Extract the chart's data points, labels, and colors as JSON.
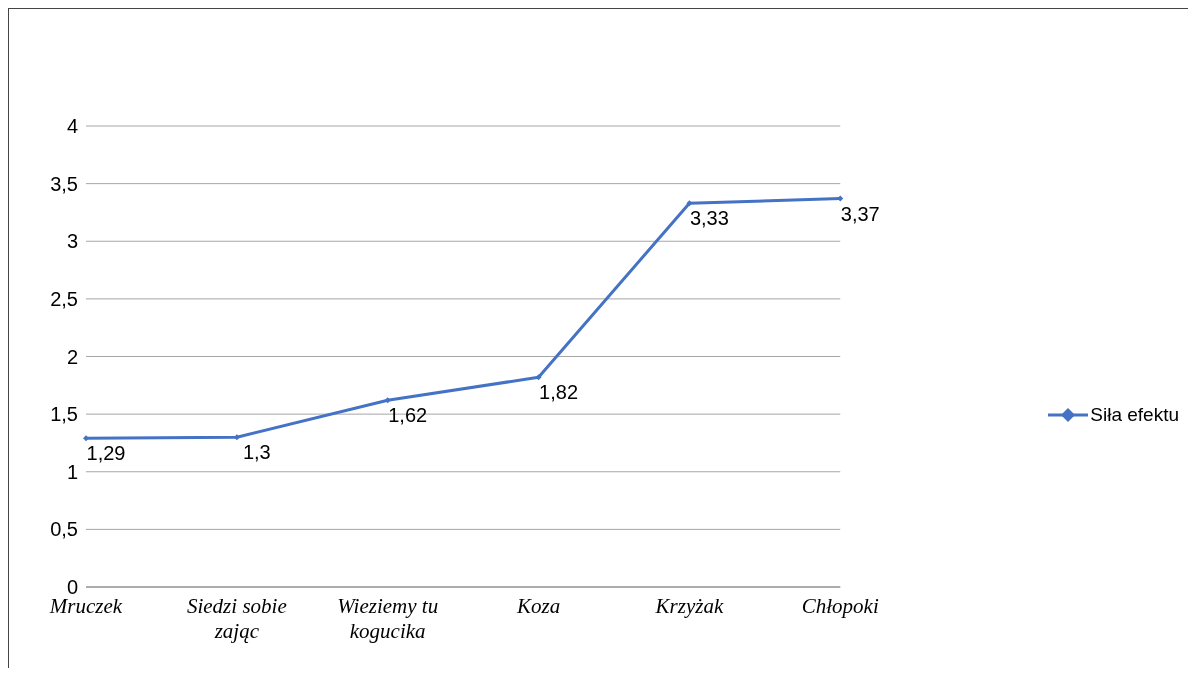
{
  "chart_data": {
    "type": "line",
    "categories": [
      "Mruczek",
      "Siedzi sobie zając",
      "Wieziemy tu kogucika",
      "Koza",
      "Krzyżak",
      "Chłopoki"
    ],
    "series": [
      {
        "name": "Siła efektu",
        "color": "#4472c4",
        "values": [
          1.29,
          1.3,
          1.62,
          1.82,
          3.33,
          3.37
        ],
        "value_labels": [
          "1,29",
          "1,3",
          "1,62",
          "1,82",
          "3,33",
          "3,37"
        ]
      }
    ],
    "ylim": [
      0,
      4
    ],
    "yticks": [
      0,
      {
        "value": 0.5,
        "label": "0,5"
      },
      1,
      {
        "value": 1.5,
        "label": "1,5"
      },
      2,
      {
        "value": 2.5,
        "label": "2,5"
      },
      3,
      {
        "value": 3.5,
        "label": "3,5"
      },
      4
    ],
    "grid": "y",
    "legend": "right",
    "marker": "diamond",
    "line_style": "solid"
  }
}
